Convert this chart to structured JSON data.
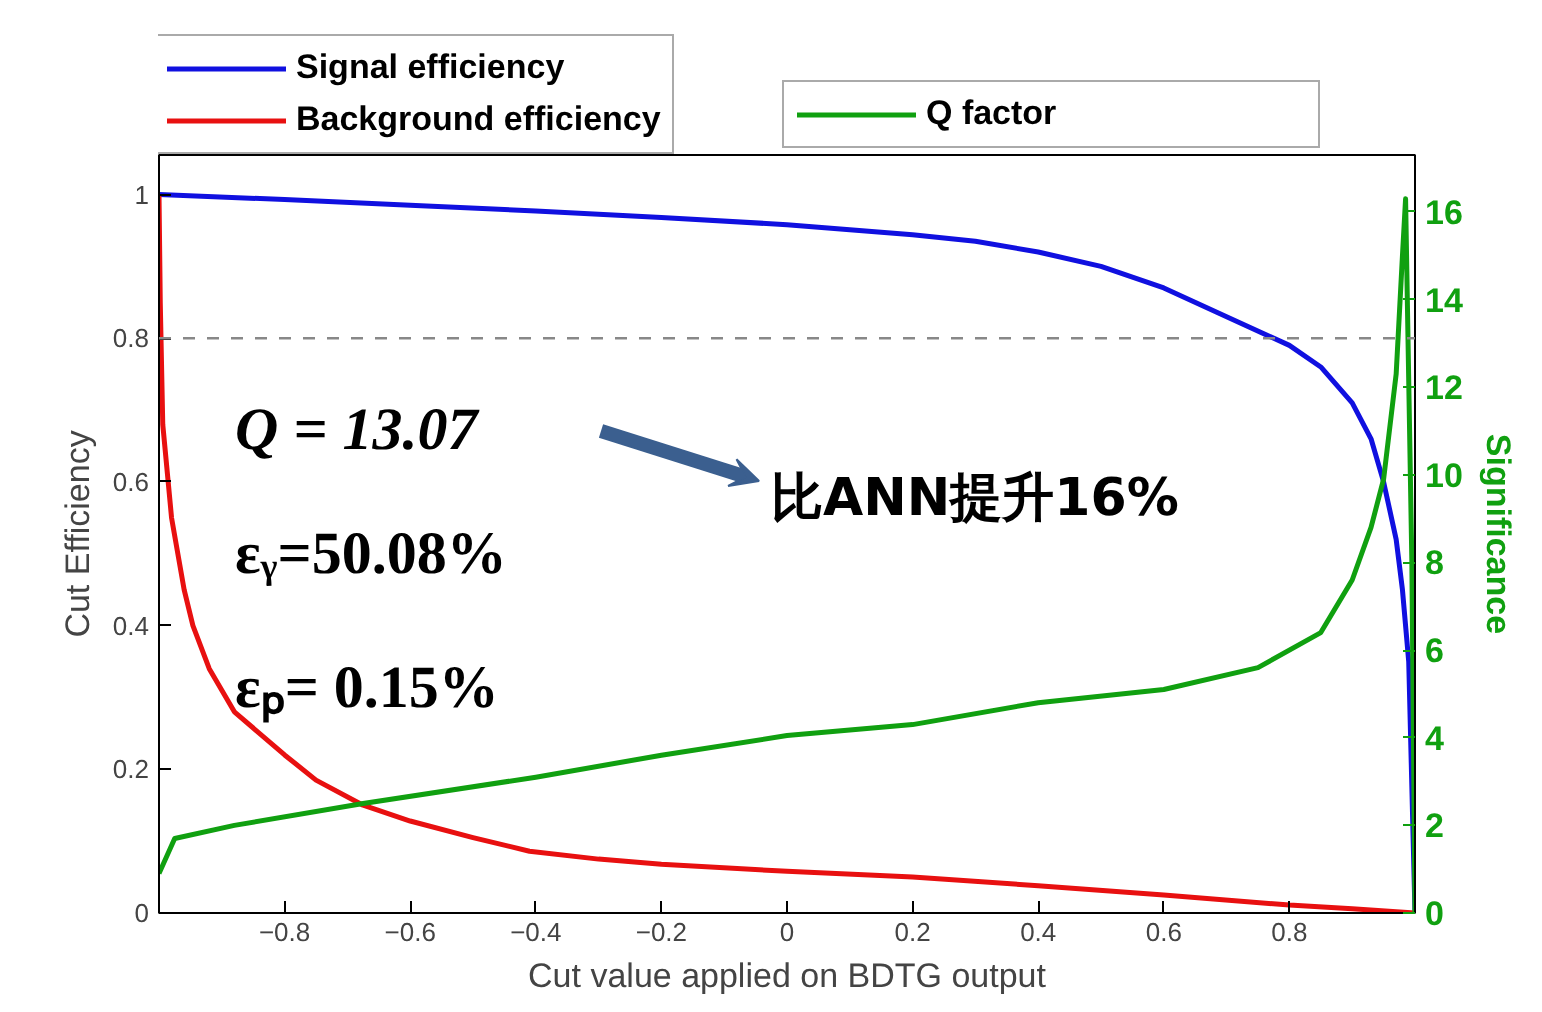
{
  "chart_data": {
    "type": "line",
    "xlabel": "Cut value applied on BDTG output",
    "ylabel": "Cut Efficiency",
    "y2label": "Significance",
    "xlim": [
      -1,
      1
    ],
    "ylim": [
      0,
      1.055
    ],
    "y2lim": [
      0,
      17.3
    ],
    "xticks": [
      {
        "value": -0.8,
        "label": "−0.8"
      },
      {
        "value": -0.6,
        "label": "−0.6"
      },
      {
        "value": -0.4,
        "label": "−0.4"
      },
      {
        "value": -0.2,
        "label": "−0.2"
      },
      0,
      0.2,
      0.4,
      0.6,
      0.8
    ],
    "yticks": [
      0,
      0.2,
      0.4,
      0.6,
      0.8,
      1
    ],
    "y2ticks": [
      0,
      2,
      4,
      6,
      8,
      10,
      12,
      14,
      16
    ],
    "grid": false,
    "legend": "top",
    "marker": "none",
    "line_style": "solid",
    "ref_lines": [
      {
        "axis": "y",
        "value": 0.8,
        "color": "#888888",
        "line_style": "dashed"
      }
    ],
    "annotations": [
      "Q = 13.07",
      "εᵧ=50.08%",
      "εₚ= 0.15%",
      "比ANN提升16%"
    ],
    "series": [
      {
        "name": "Signal efficiency",
        "color": "#1010e0",
        "x": [
          -1,
          -0.8,
          -0.6,
          -0.4,
          -0.2,
          0,
          0.2,
          0.3,
          0.4,
          0.5,
          0.6,
          0.7,
          0.8,
          0.85,
          0.9,
          0.93,
          0.95,
          0.97,
          0.98,
          0.99,
          1.0
        ],
        "values": [
          1.0,
          0.993,
          0.985,
          0.977,
          0.968,
          0.958,
          0.944,
          0.935,
          0.92,
          0.9,
          0.87,
          0.83,
          0.79,
          0.76,
          0.71,
          0.66,
          0.6,
          0.52,
          0.45,
          0.35,
          0.0
        ]
      },
      {
        "name": "Background efficiency",
        "color": "#e81010",
        "x": [
          -1,
          -0.998,
          -0.994,
          -0.98,
          -0.96,
          -0.946,
          -0.92,
          -0.88,
          -0.8,
          -0.75,
          -0.675,
          -0.6,
          -0.5,
          -0.41,
          -0.3,
          -0.2,
          0,
          0.2,
          0.4,
          0.6,
          0.8,
          0.9,
          1.0
        ],
        "values": [
          1.0,
          0.85,
          0.68,
          0.55,
          0.45,
          0.4,
          0.34,
          0.28,
          0.22,
          0.185,
          0.15,
          0.128,
          0.105,
          0.086,
          0.075,
          0.068,
          0.058,
          0.05,
          0.038,
          0.025,
          0.011,
          0.006,
          0.0
        ]
      },
      {
        "name": "Q factor",
        "color": "#10a010",
        "axis": "y2",
        "x": [
          -1,
          -0.975,
          -0.88,
          -0.675,
          -0.4,
          -0.2,
          0,
          0.2,
          0.4,
          0.6,
          0.75,
          0.85,
          0.9,
          0.93,
          0.95,
          0.97,
          0.98,
          0.985,
          0.995,
          1.0
        ],
        "values": [
          0.9,
          1.7,
          2.0,
          2.5,
          3.1,
          3.6,
          4.05,
          4.3,
          4.8,
          5.1,
          5.6,
          6.4,
          7.6,
          8.8,
          9.9,
          12.3,
          15.0,
          16.3,
          8.0,
          0.0
        ]
      }
    ]
  }
}
